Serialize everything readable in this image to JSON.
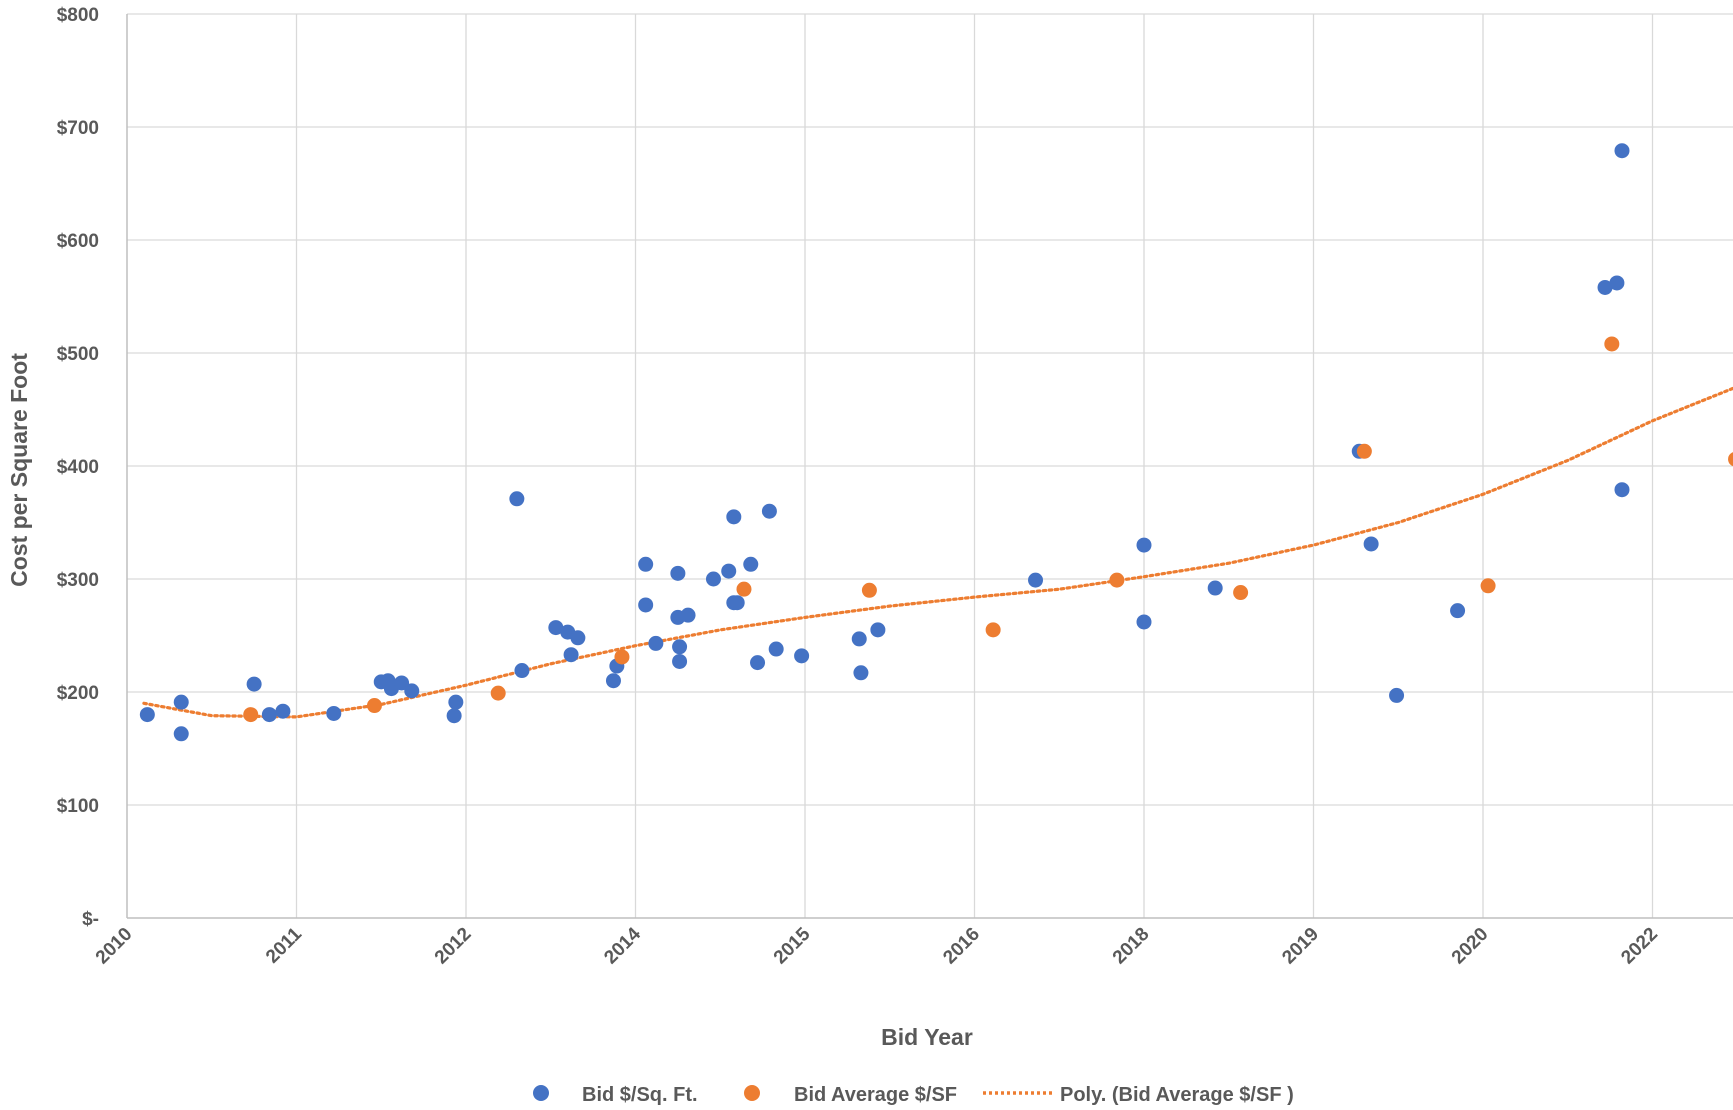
{
  "chart_data": {
    "type": "scatter",
    "title": "",
    "xlabel": "Bid Year",
    "ylabel": "Cost per Square Foot",
    "x_tick_labels": [
      "2010",
      "2011",
      "2012",
      "2014",
      "2015",
      "2016",
      "2018",
      "2019",
      "2020",
      "2022"
    ],
    "y_tick_labels": [
      "$-",
      "$100",
      "$200",
      "$300",
      "$400",
      "$500",
      "$600",
      "$700",
      "$800"
    ],
    "ylim": [
      0,
      800
    ],
    "grid": true,
    "legend_position": "bottom",
    "colors": {
      "blue": "#4472C4",
      "orange": "#ED7D31",
      "grid": "#D9D9D9",
      "axis": "#BFBFBF",
      "text": "#595959"
    },
    "series": [
      {
        "name": "Bid $/Sq. Ft.",
        "color": "#4472C4",
        "points": [
          [
            0.12,
            180
          ],
          [
            0.32,
            191
          ],
          [
            0.32,
            163
          ],
          [
            0.75,
            207
          ],
          [
            0.84,
            180
          ],
          [
            0.92,
            183
          ],
          [
            1.22,
            181
          ],
          [
            1.5,
            209
          ],
          [
            1.54,
            210
          ],
          [
            1.56,
            203
          ],
          [
            1.62,
            208
          ],
          [
            1.68,
            201
          ],
          [
            1.94,
            191
          ],
          [
            1.93,
            179
          ],
          [
            2.3,
            371
          ],
          [
            2.33,
            219
          ],
          [
            2.53,
            257
          ],
          [
            2.6,
            253
          ],
          [
            2.62,
            233
          ],
          [
            2.66,
            248
          ],
          [
            2.87,
            210
          ],
          [
            2.89,
            223
          ],
          [
            3.06,
            313
          ],
          [
            3.06,
            277
          ],
          [
            3.12,
            243
          ],
          [
            3.25,
            305
          ],
          [
            3.25,
            266
          ],
          [
            3.26,
            240
          ],
          [
            3.26,
            227
          ],
          [
            3.31,
            268
          ],
          [
            3.46,
            300
          ],
          [
            3.55,
            307
          ],
          [
            3.58,
            355
          ],
          [
            3.58,
            279
          ],
          [
            3.6,
            279
          ],
          [
            3.68,
            313
          ],
          [
            3.72,
            226
          ],
          [
            3.79,
            360
          ],
          [
            3.83,
            238
          ],
          [
            3.98,
            232
          ],
          [
            4.32,
            247
          ],
          [
            4.33,
            217
          ],
          [
            4.43,
            255
          ],
          [
            5.36,
            299
          ],
          [
            6.0,
            330
          ],
          [
            6.0,
            262
          ],
          [
            6.42,
            292
          ],
          [
            7.27,
            413
          ],
          [
            7.34,
            331
          ],
          [
            7.49,
            197
          ],
          [
            7.85,
            272
          ],
          [
            8.72,
            558
          ],
          [
            8.79,
            562
          ],
          [
            8.82,
            679
          ],
          [
            8.82,
            379
          ]
        ]
      },
      {
        "name": "Bid Average $/SF",
        "color": "#ED7D31",
        "points": [
          [
            0.73,
            180
          ],
          [
            1.46,
            188
          ],
          [
            2.19,
            199
          ],
          [
            2.92,
            231
          ],
          [
            3.64,
            291
          ],
          [
            4.38,
            290
          ],
          [
            5.11,
            255
          ],
          [
            5.84,
            299
          ],
          [
            6.57,
            288
          ],
          [
            7.3,
            413
          ],
          [
            8.03,
            294
          ],
          [
            8.76,
            508
          ],
          [
            9.49,
            406
          ]
        ]
      },
      {
        "name": "Poly. (Bid Average $/SF )",
        "color": "#ED7D31",
        "style": "dotted",
        "points": [
          [
            0.1,
            190
          ],
          [
            0.5,
            179
          ],
          [
            1.0,
            178
          ],
          [
            1.5,
            189
          ],
          [
            2.0,
            206
          ],
          [
            2.5,
            225
          ],
          [
            3.0,
            241
          ],
          [
            3.5,
            255
          ],
          [
            4.0,
            266
          ],
          [
            4.5,
            276
          ],
          [
            5.0,
            284
          ],
          [
            5.5,
            291
          ],
          [
            6.0,
            302
          ],
          [
            6.5,
            314
          ],
          [
            7.0,
            330
          ],
          [
            7.5,
            350
          ],
          [
            8.0,
            375
          ],
          [
            8.5,
            405
          ],
          [
            9.0,
            440
          ],
          [
            9.48,
            469
          ]
        ]
      }
    ]
  }
}
